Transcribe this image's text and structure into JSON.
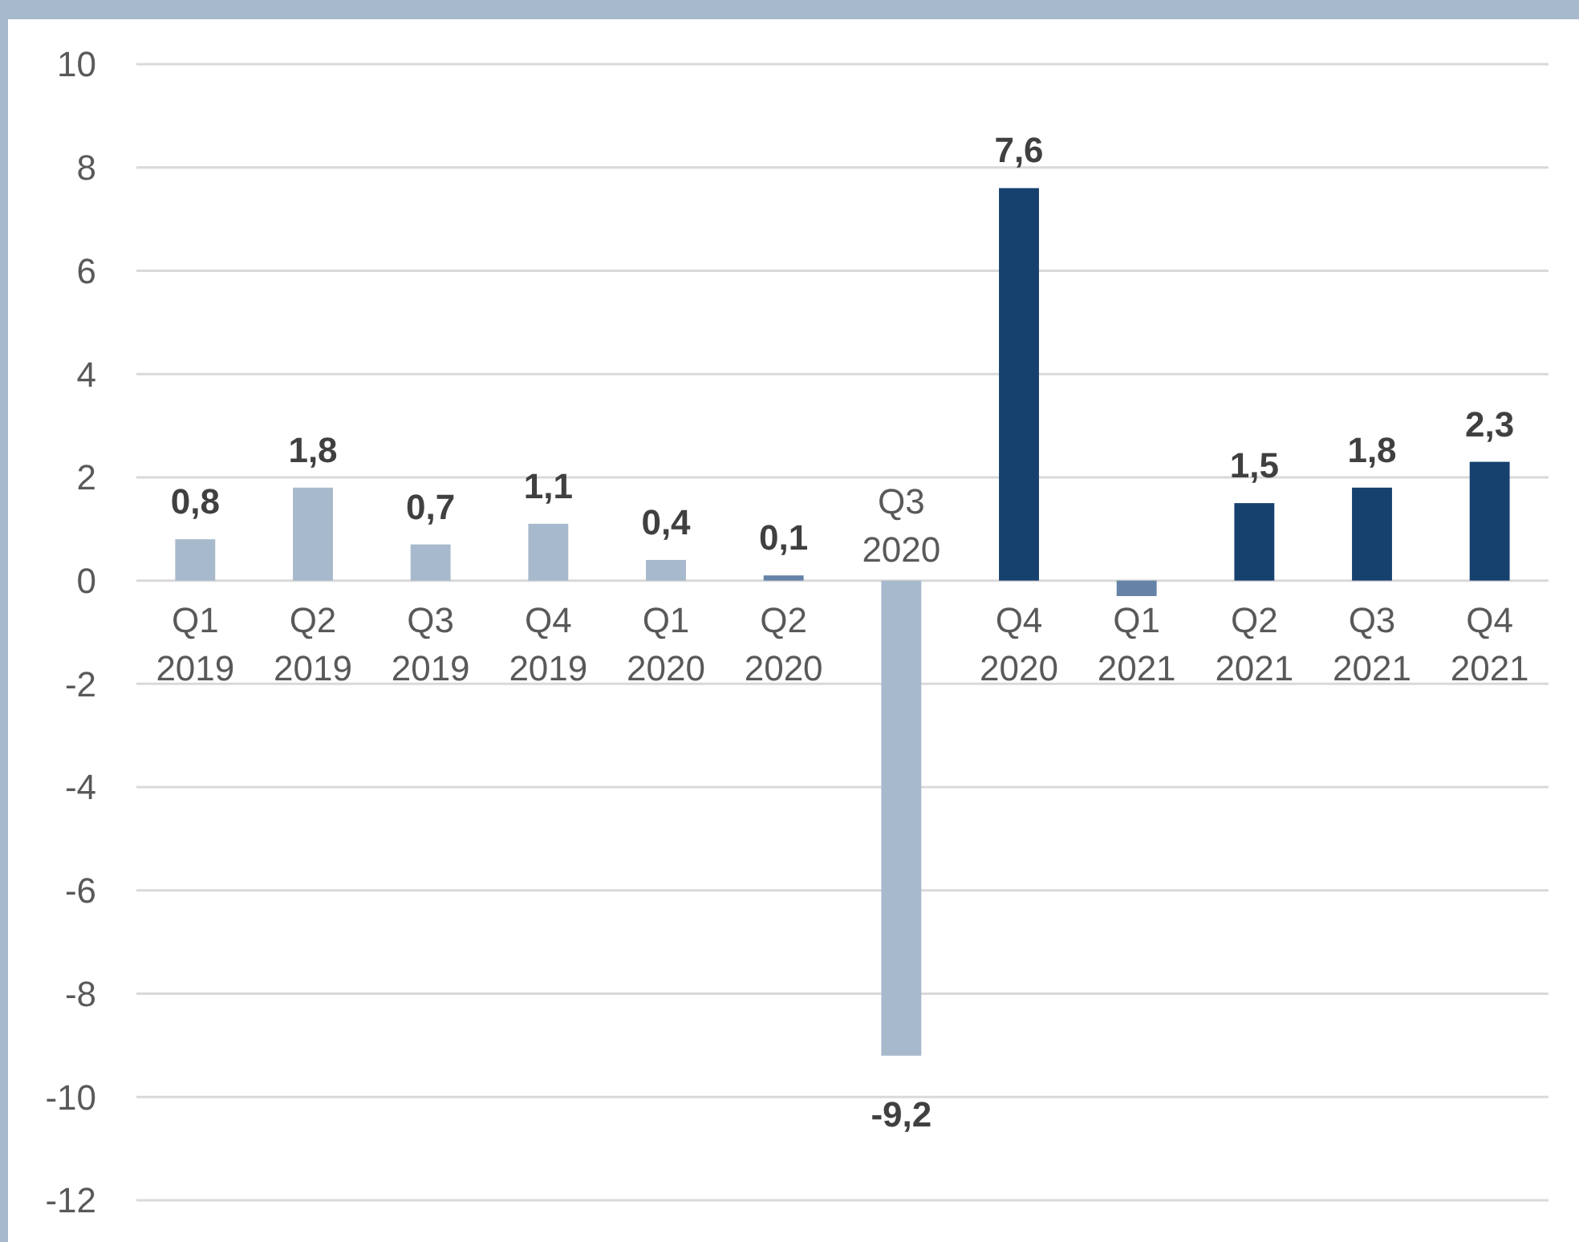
{
  "chart_data": {
    "type": "bar",
    "categories": [
      "Q1\n2019",
      "Q2\n2019",
      "Q3\n2019",
      "Q4\n2019",
      "Q1\n2020",
      "Q2\n2020",
      "Q3\n2020",
      "Q4\n2020",
      "Q1\n2021",
      "Q2\n2021",
      "Q3\n2021",
      "Q4\n2021"
    ],
    "values": [
      0.8,
      1.8,
      0.7,
      1.1,
      0.4,
      0.1,
      -9.2,
      7.6,
      -0.3,
      1.5,
      1.8,
      2.3
    ],
    "colors": [
      "#a7b9cc",
      "#a7b9cc",
      "#a7b9cc",
      "#a7b9cc",
      "#a7b9cc",
      "#6583a6",
      "#a7b9cc",
      "#16416f",
      "#6583a6",
      "#16416f",
      "#16416f",
      "#16416f"
    ],
    "value_labels": [
      "0,8",
      "1,8",
      "0,7",
      "1,1",
      "0,4",
      "0,1",
      "-9,2",
      "7,6",
      null,
      "1,5",
      "1,8",
      "2,3"
    ],
    "ylim": [
      -12,
      10
    ],
    "yticks": [
      -12,
      -10,
      -8,
      -6,
      -4,
      -2,
      0,
      2,
      4,
      6,
      8,
      10
    ],
    "grid": "y"
  }
}
